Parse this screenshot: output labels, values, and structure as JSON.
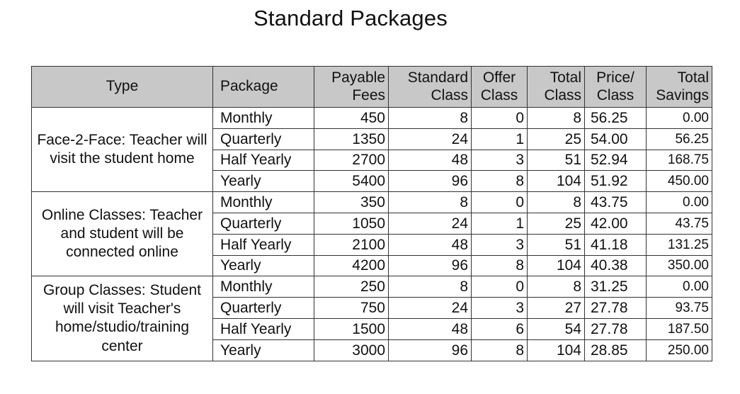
{
  "title": "Standard Packages",
  "headers": {
    "type": "Type",
    "package": "Package",
    "payable_fees": [
      "Payable",
      "Fees"
    ],
    "standard_class": [
      "Standard",
      "Class"
    ],
    "offer_class": [
      "Offer",
      "Class"
    ],
    "total_class": [
      "Total",
      "Class"
    ],
    "price_per_class": [
      "Price/",
      "Class"
    ],
    "total_savings": [
      "Total",
      "Savings"
    ]
  },
  "groups": [
    {
      "type": "Face-2-Face: Teacher will visit the student home",
      "rows": [
        {
          "package": "Monthly",
          "fees": "450",
          "standard": "8",
          "offer": "0",
          "total": "8",
          "price": "56.25",
          "savings": "0.00"
        },
        {
          "package": "Quarterly",
          "fees": "1350",
          "standard": "24",
          "offer": "1",
          "total": "25",
          "price": "54.00",
          "savings": "56.25"
        },
        {
          "package": "Half Yearly",
          "fees": "2700",
          "standard": "48",
          "offer": "3",
          "total": "51",
          "price": "52.94",
          "savings": "168.75"
        },
        {
          "package": "Yearly",
          "fees": "5400",
          "standard": "96",
          "offer": "8",
          "total": "104",
          "price": "51.92",
          "savings": "450.00"
        }
      ]
    },
    {
      "type": "Online Classes: Teacher and student will be connected online",
      "rows": [
        {
          "package": "Monthly",
          "fees": "350",
          "standard": "8",
          "offer": "0",
          "total": "8",
          "price": "43.75",
          "savings": "0.00"
        },
        {
          "package": "Quarterly",
          "fees": "1050",
          "standard": "24",
          "offer": "1",
          "total": "25",
          "price": "42.00",
          "savings": "43.75"
        },
        {
          "package": "Half Yearly",
          "fees": "2100",
          "standard": "48",
          "offer": "3",
          "total": "51",
          "price": "41.18",
          "savings": "131.25"
        },
        {
          "package": "Yearly",
          "fees": "4200",
          "standard": "96",
          "offer": "8",
          "total": "104",
          "price": "40.38",
          "savings": "350.00"
        }
      ]
    },
    {
      "type": "Group Classes: Student will visit Teacher's home/studio/training center",
      "rows": [
        {
          "package": "Monthly",
          "fees": "250",
          "standard": "8",
          "offer": "0",
          "total": "8",
          "price": "31.25",
          "savings": "0.00"
        },
        {
          "package": "Quarterly",
          "fees": "750",
          "standard": "24",
          "offer": "3",
          "total": "27",
          "price": "27.78",
          "savings": "93.75"
        },
        {
          "package": "Half Yearly",
          "fees": "1500",
          "standard": "48",
          "offer": "6",
          "total": "54",
          "price": "27.78",
          "savings": "187.50"
        },
        {
          "package": "Yearly",
          "fees": "3000",
          "standard": "96",
          "offer": "8",
          "total": "104",
          "price": "28.85",
          "savings": "250.00"
        }
      ]
    }
  ]
}
